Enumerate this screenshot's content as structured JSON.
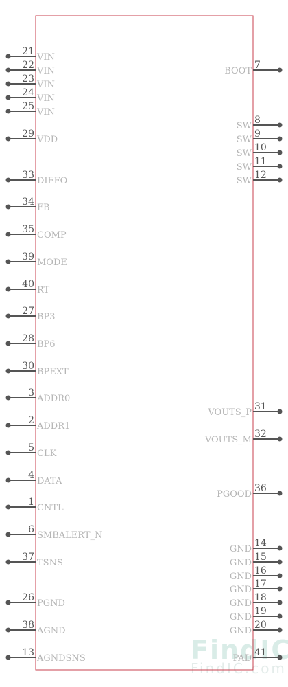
{
  "component": {
    "left_pins": [
      {
        "num": "21",
        "name": "VIN"
      },
      {
        "num": "22",
        "name": "VIN"
      },
      {
        "num": "23",
        "name": "VIN"
      },
      {
        "num": "24",
        "name": "VIN"
      },
      {
        "num": "25",
        "name": "VIN"
      },
      {
        "num": "29",
        "name": "VDD"
      },
      {
        "num": "33",
        "name": "DIFFO"
      },
      {
        "num": "34",
        "name": "FB"
      },
      {
        "num": "35",
        "name": "COMP"
      },
      {
        "num": "39",
        "name": "MODE"
      },
      {
        "num": "40",
        "name": "RT"
      },
      {
        "num": "27",
        "name": "BP3"
      },
      {
        "num": "28",
        "name": "BP6"
      },
      {
        "num": "30",
        "name": "BPEXT"
      },
      {
        "num": "3",
        "name": "ADDR0"
      },
      {
        "num": "2",
        "name": "ADDR1"
      },
      {
        "num": "5",
        "name": "CLK"
      },
      {
        "num": "4",
        "name": "DATA"
      },
      {
        "num": "1",
        "name": "CNTL"
      },
      {
        "num": "6",
        "name": "SMBALERT_N"
      },
      {
        "num": "37",
        "name": "TSNS"
      },
      {
        "num": "26",
        "name": "PGND"
      },
      {
        "num": "38",
        "name": "AGND"
      },
      {
        "num": "13",
        "name": "AGNDSNS"
      }
    ],
    "right_pins": [
      {
        "num": "7",
        "name": "BOOT"
      },
      {
        "num": "8",
        "name": "SW"
      },
      {
        "num": "9",
        "name": "SW"
      },
      {
        "num": "10",
        "name": "SW"
      },
      {
        "num": "11",
        "name": "SW"
      },
      {
        "num": "12",
        "name": "SW"
      },
      {
        "num": "31",
        "name": "VOUTS_P"
      },
      {
        "num": "32",
        "name": "VOUTS_M"
      },
      {
        "num": "36",
        "name": "PGOOD"
      },
      {
        "num": "14",
        "name": "GND"
      },
      {
        "num": "15",
        "name": "GND"
      },
      {
        "num": "16",
        "name": "GND"
      },
      {
        "num": "17",
        "name": "GND"
      },
      {
        "num": "18",
        "name": "GND"
      },
      {
        "num": "19",
        "name": "GND"
      },
      {
        "num": "20",
        "name": "GND"
      },
      {
        "num": "41",
        "name": "PAD"
      }
    ]
  },
  "watermark": {
    "logo": "FindIC",
    "url": "FindIC.com"
  },
  "colors": {
    "body_outline": "#c8414f",
    "pin": "#555555",
    "pin_label": "#b5b5b5",
    "watermark": "#d9ece7"
  }
}
